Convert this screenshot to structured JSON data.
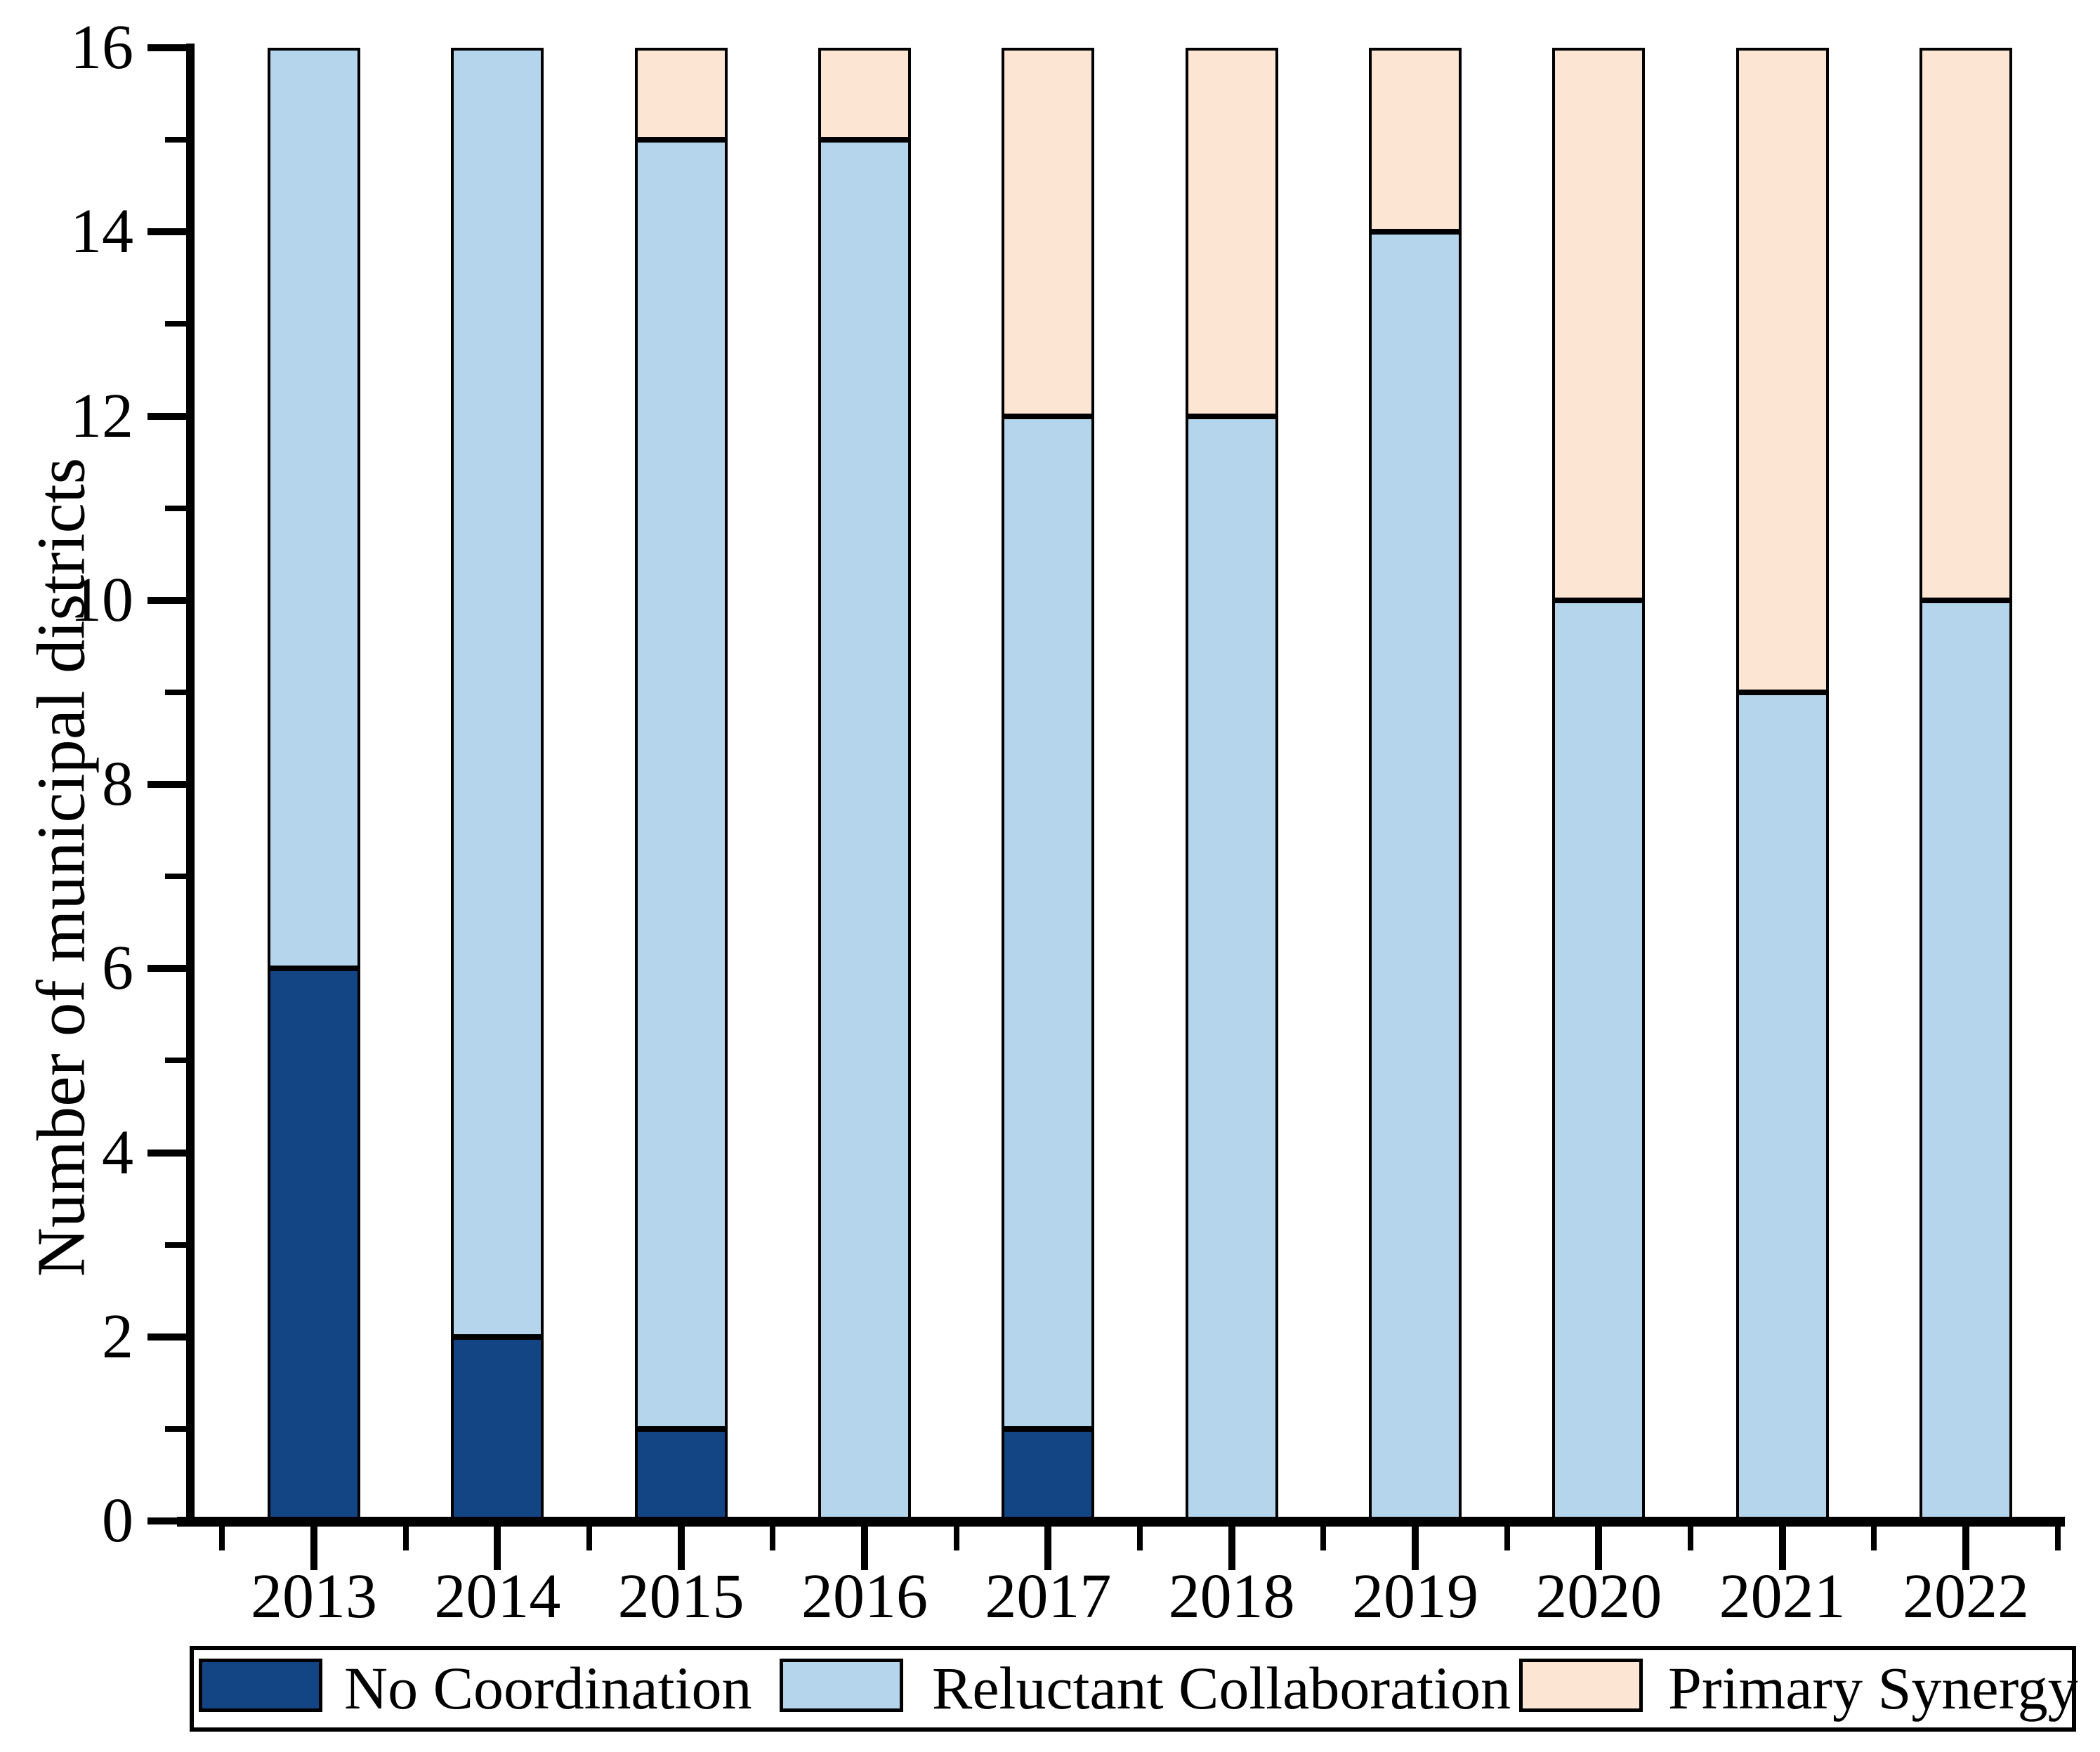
{
  "figure": {
    "background": "#ffffff"
  },
  "chart_data": {
    "type": "bar",
    "stacked": true,
    "title": "",
    "xlabel": "",
    "ylabel": "Number of municipal districts",
    "ylim": [
      0,
      16
    ],
    "yticks": {
      "major_step": 2,
      "minor_step": 1
    },
    "ytick_labels": [
      "0",
      "2",
      "4",
      "6",
      "8",
      "10",
      "12",
      "14",
      "16"
    ],
    "grid": false,
    "legend_position": "bottom",
    "bar_outline_color": "#000000",
    "categories": [
      "2013",
      "2014",
      "2015",
      "2016",
      "2017",
      "2018",
      "2019",
      "2020",
      "2021",
      "2022"
    ],
    "series": [
      {
        "name": "No Coordination",
        "color": "#134483",
        "values": [
          6,
          2,
          1,
          0,
          1,
          0,
          0,
          0,
          0,
          0
        ]
      },
      {
        "name": "Reluctant Collaboration",
        "color": "#B4D5EC",
        "values": [
          10,
          14,
          14,
          15,
          11,
          12,
          14,
          10,
          9,
          10
        ]
      },
      {
        "name": "Primary Synergy",
        "color": "#FDE5D4",
        "values": [
          0,
          0,
          1,
          1,
          4,
          4,
          2,
          6,
          7,
          6
        ]
      }
    ]
  }
}
